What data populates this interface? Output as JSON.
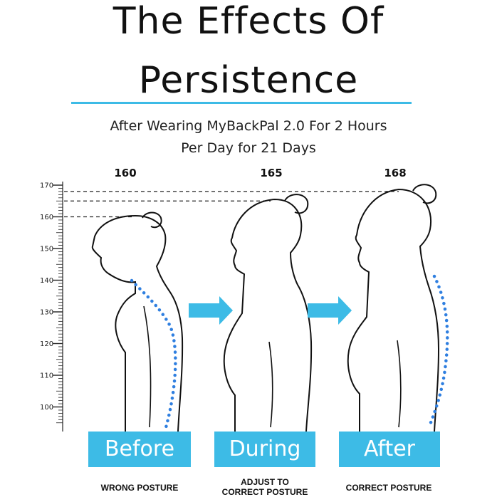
{
  "title": {
    "line1": "The Effects Of",
    "line2": "Persistence"
  },
  "subtitle": {
    "line1": "After Wearing MyBackPal 2.0 For 2 Hours",
    "line2": "Per Day for 21 Days"
  },
  "colors": {
    "accent": "#3dbbe6",
    "spine": "#2f7fe0",
    "ink": "#111111"
  },
  "scale": {
    "min": 95,
    "max": 170,
    "ticks": [
      170,
      160,
      150,
      140,
      130,
      120,
      110,
      100
    ]
  },
  "stages": [
    {
      "name": "Before",
      "height": 160,
      "height_label": "160",
      "caption_lines": [
        "WRONG POSTURE"
      ]
    },
    {
      "name": "During",
      "height": 165,
      "height_label": "165",
      "caption_lines": [
        "ADJUST TO",
        "CORRECT POSTURE"
      ]
    },
    {
      "name": "After",
      "height": 168,
      "height_label": "168",
      "caption_lines": [
        "CORRECT POSTURE"
      ]
    }
  ],
  "arrows": [
    "right-arrow-icon",
    "right-arrow-icon"
  ]
}
